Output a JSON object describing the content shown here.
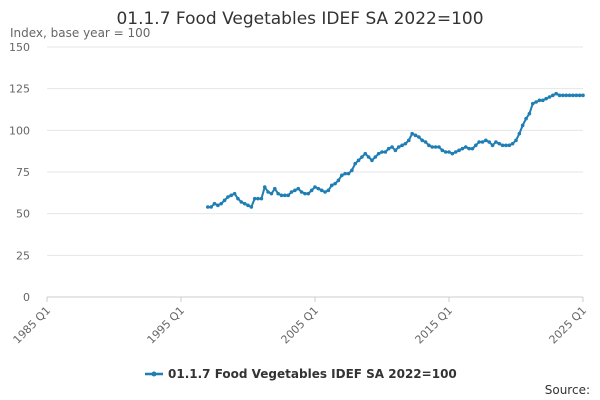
{
  "chart_data": {
    "type": "line",
    "title": "01.1.7 Food Vegetables IDEF SA 2022=100",
    "ylabel": "Index, base year = 100",
    "xlabel": "",
    "ylim": [
      0,
      150
    ],
    "yticks": [
      0,
      25,
      50,
      75,
      100,
      125,
      150
    ],
    "xlim": [
      1985.0,
      2025.0
    ],
    "xticks": [
      {
        "value": 1985.0,
        "label": "1985 Q1"
      },
      {
        "value": 1995.0,
        "label": "1995 Q1"
      },
      {
        "value": 2005.0,
        "label": "2005 Q1"
      },
      {
        "value": 2015.0,
        "label": "2015 Q1"
      },
      {
        "value": 2025.0,
        "label": "2025 Q1"
      }
    ],
    "grid": true,
    "legend_position": "bottom",
    "series": [
      {
        "name": "01.1.7 Food Vegetables IDEF SA 2022=100",
        "color": "#1f7eb4",
        "x": [
          1997.0,
          1997.25,
          1997.5,
          1997.75,
          1998.0,
          1998.25,
          1998.5,
          1998.75,
          1999.0,
          1999.25,
          1999.5,
          1999.75,
          2000.0,
          2000.25,
          2000.5,
          2000.75,
          2001.0,
          2001.25,
          2001.5,
          2001.75,
          2002.0,
          2002.25,
          2002.5,
          2002.75,
          2003.0,
          2003.25,
          2003.5,
          2003.75,
          2004.0,
          2004.25,
          2004.5,
          2004.75,
          2005.0,
          2005.25,
          2005.5,
          2005.75,
          2006.0,
          2006.25,
          2006.5,
          2006.75,
          2007.0,
          2007.25,
          2007.5,
          2007.75,
          2008.0,
          2008.25,
          2008.5,
          2008.75,
          2009.0,
          2009.25,
          2009.5,
          2009.75,
          2010.0,
          2010.25,
          2010.5,
          2010.75,
          2011.0,
          2011.25,
          2011.5,
          2011.75,
          2012.0,
          2012.25,
          2012.5,
          2012.75,
          2013.0,
          2013.25,
          2013.5,
          2013.75,
          2014.0,
          2014.25,
          2014.5,
          2014.75,
          2015.0,
          2015.25,
          2015.5,
          2015.75,
          2016.0,
          2016.25,
          2016.5,
          2016.75,
          2017.0,
          2017.25,
          2017.5,
          2017.75,
          2018.0,
          2018.25,
          2018.5,
          2018.75,
          2019.0,
          2019.25,
          2019.5,
          2019.75,
          2020.0,
          2020.25,
          2020.5,
          2020.75,
          2021.0,
          2021.25,
          2021.5,
          2021.75,
          2022.0,
          2022.25,
          2022.5,
          2022.75,
          2023.0,
          2023.25,
          2023.5,
          2023.75,
          2024.0,
          2024.25,
          2024.5,
          2024.75,
          2025.0
        ],
        "values": [
          54,
          54,
          56,
          55,
          56,
          58,
          60,
          61,
          62,
          59,
          57,
          56,
          55,
          54,
          59,
          59,
          59,
          66,
          63,
          62,
          65,
          62,
          61,
          61,
          61,
          63,
          64,
          65,
          63,
          62,
          62,
          64,
          66,
          65,
          64,
          63,
          64,
          67,
          68,
          70,
          73,
          74,
          74,
          76,
          80,
          82,
          84,
          86,
          84,
          82,
          84,
          86,
          87,
          87,
          89,
          90,
          88,
          90,
          91,
          92,
          94,
          98,
          97,
          96,
          94,
          93,
          91,
          90,
          90,
          90,
          88,
          87,
          87,
          86,
          87,
          88,
          89,
          90,
          89,
          89,
          91,
          93,
          93,
          94,
          93,
          91,
          93,
          92,
          91,
          91,
          91,
          92,
          94,
          98,
          103,
          107,
          110,
          116,
          117,
          118,
          118,
          119,
          120,
          121,
          122,
          121,
          121,
          121,
          121,
          121,
          121,
          121,
          121
        ]
      }
    ],
    "source_label": "Source:"
  }
}
